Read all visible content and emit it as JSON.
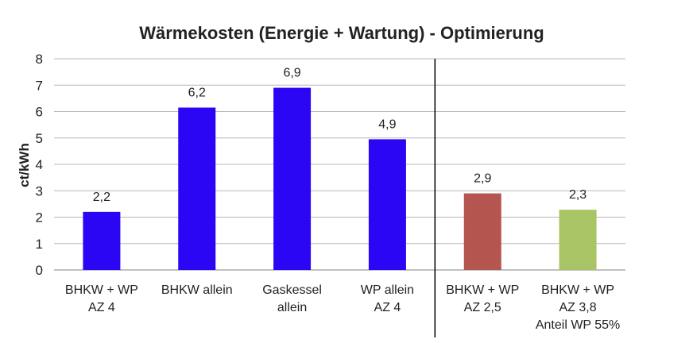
{
  "chart_data": {
    "type": "bar",
    "title": "Wärmekosten (Energie + Wartung) - Optimierung",
    "xlabel": "",
    "ylabel": "ct/kWh",
    "ylim": [
      0,
      8
    ],
    "yticks": [
      "0",
      "1",
      "2",
      "3",
      "4",
      "5",
      "6",
      "7",
      "8"
    ],
    "grid": true,
    "categories": [
      [
        "BHKW + WP",
        "AZ 4"
      ],
      [
        "BHKW allein"
      ],
      [
        "Gaskessel",
        "allein"
      ],
      [
        "WP allein",
        "AZ 4"
      ],
      [
        "BHKW + WP",
        "AZ 2,5"
      ],
      [
        "BHKW + WP",
        "AZ 3,8",
        "Anteil WP 55%"
      ]
    ],
    "values": [
      2.2,
      6.15,
      6.9,
      4.95,
      2.9,
      2.28
    ],
    "data_labels": [
      "2,2",
      "6,2",
      "6,9",
      "4,9",
      "2,9",
      "2,3"
    ],
    "colors": [
      "#2b06f5",
      "#2b06f5",
      "#2b06f5",
      "#2b06f5",
      "#b4554f",
      "#a9c464"
    ],
    "separator_after_category": 4
  }
}
